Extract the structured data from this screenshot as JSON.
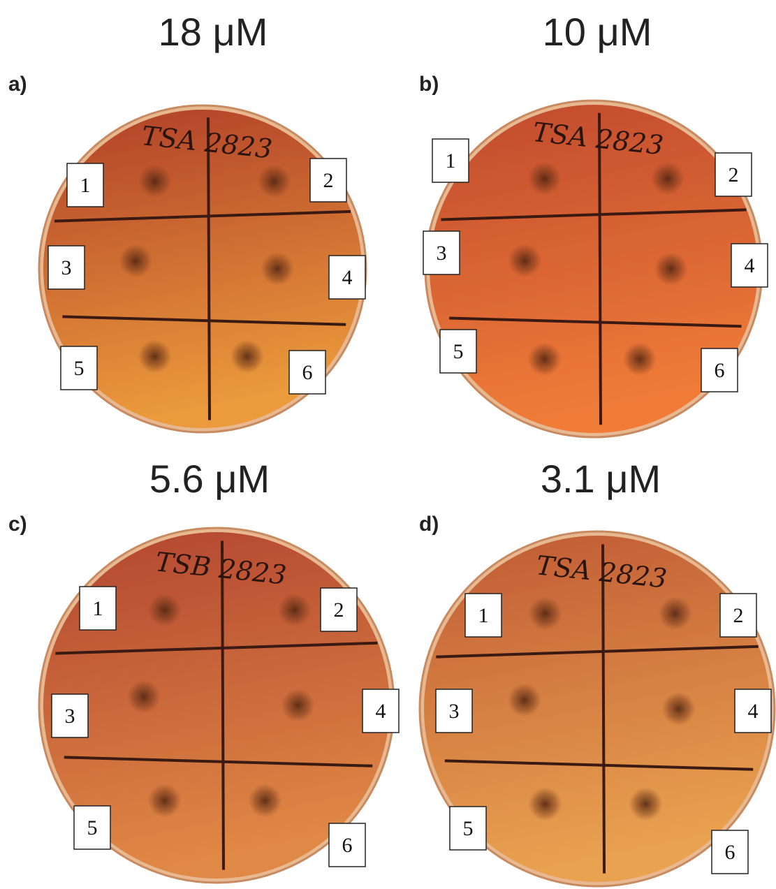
{
  "panels": [
    {
      "title": "18 μM",
      "label": "a)",
      "handwriting": "TSA 2823",
      "boxes": [
        "1",
        "2",
        "3",
        "4",
        "5",
        "6"
      ]
    },
    {
      "title": "10 μM",
      "label": "b)",
      "handwriting": "TSA 2823",
      "boxes": [
        "1",
        "2",
        "3",
        "4",
        "5",
        "6"
      ]
    },
    {
      "title": "5.6 μM",
      "label": "c)",
      "handwriting": "TSB 2823",
      "boxes": [
        "1",
        "2",
        "3",
        "4",
        "5",
        "6"
      ]
    },
    {
      "title": "3.1 μM",
      "label": "d)",
      "handwriting": "TSA 2823",
      "boxes": [
        "1",
        "2",
        "3",
        "4",
        "5",
        "6"
      ]
    }
  ]
}
